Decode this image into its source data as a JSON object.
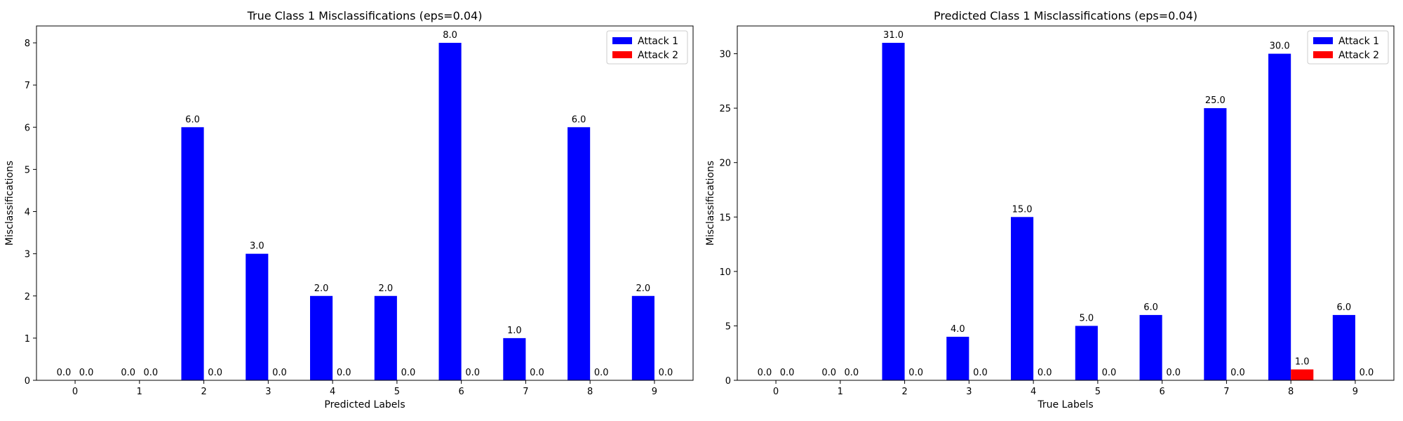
{
  "colors": {
    "attack1": "#0000ff",
    "attack2": "#ff0000"
  },
  "chart_data": [
    {
      "type": "bar",
      "title": "True Class 1 Misclassifications (eps=0.04)",
      "xlabel": "Predicted Labels",
      "ylabel": "Misclassifications",
      "categories": [
        "0",
        "1",
        "2",
        "3",
        "4",
        "5",
        "6",
        "7",
        "8",
        "9"
      ],
      "ylim": [
        0,
        8.4
      ],
      "yticks": [
        0,
        1,
        2,
        3,
        4,
        5,
        6,
        7,
        8
      ],
      "series": [
        {
          "name": "Attack 1",
          "color": "#0000ff",
          "values": [
            0,
            0,
            6,
            3,
            2,
            2,
            8,
            1,
            6,
            2
          ]
        },
        {
          "name": "Attack 2",
          "color": "#ff0000",
          "values": [
            0,
            0,
            0,
            0,
            0,
            0,
            0,
            0,
            0,
            0
          ]
        }
      ],
      "legend": "top-right",
      "grid": false
    },
    {
      "type": "bar",
      "title": "Predicted Class 1 Misclassifications (eps=0.04)",
      "xlabel": "True Labels",
      "ylabel": "Misclassifications",
      "categories": [
        "0",
        "1",
        "2",
        "3",
        "4",
        "5",
        "6",
        "7",
        "8",
        "9"
      ],
      "ylim": [
        0,
        32.55
      ],
      "yticks": [
        0,
        5,
        10,
        15,
        20,
        25,
        30
      ],
      "series": [
        {
          "name": "Attack 1",
          "color": "#0000ff",
          "values": [
            0,
            0,
            31,
            4,
            15,
            5,
            6,
            25,
            30,
            6
          ]
        },
        {
          "name": "Attack 2",
          "color": "#ff0000",
          "values": [
            0,
            0,
            0,
            0,
            0,
            0,
            0,
            0,
            1,
            0
          ]
        }
      ],
      "legend": "top-right",
      "grid": false
    }
  ]
}
